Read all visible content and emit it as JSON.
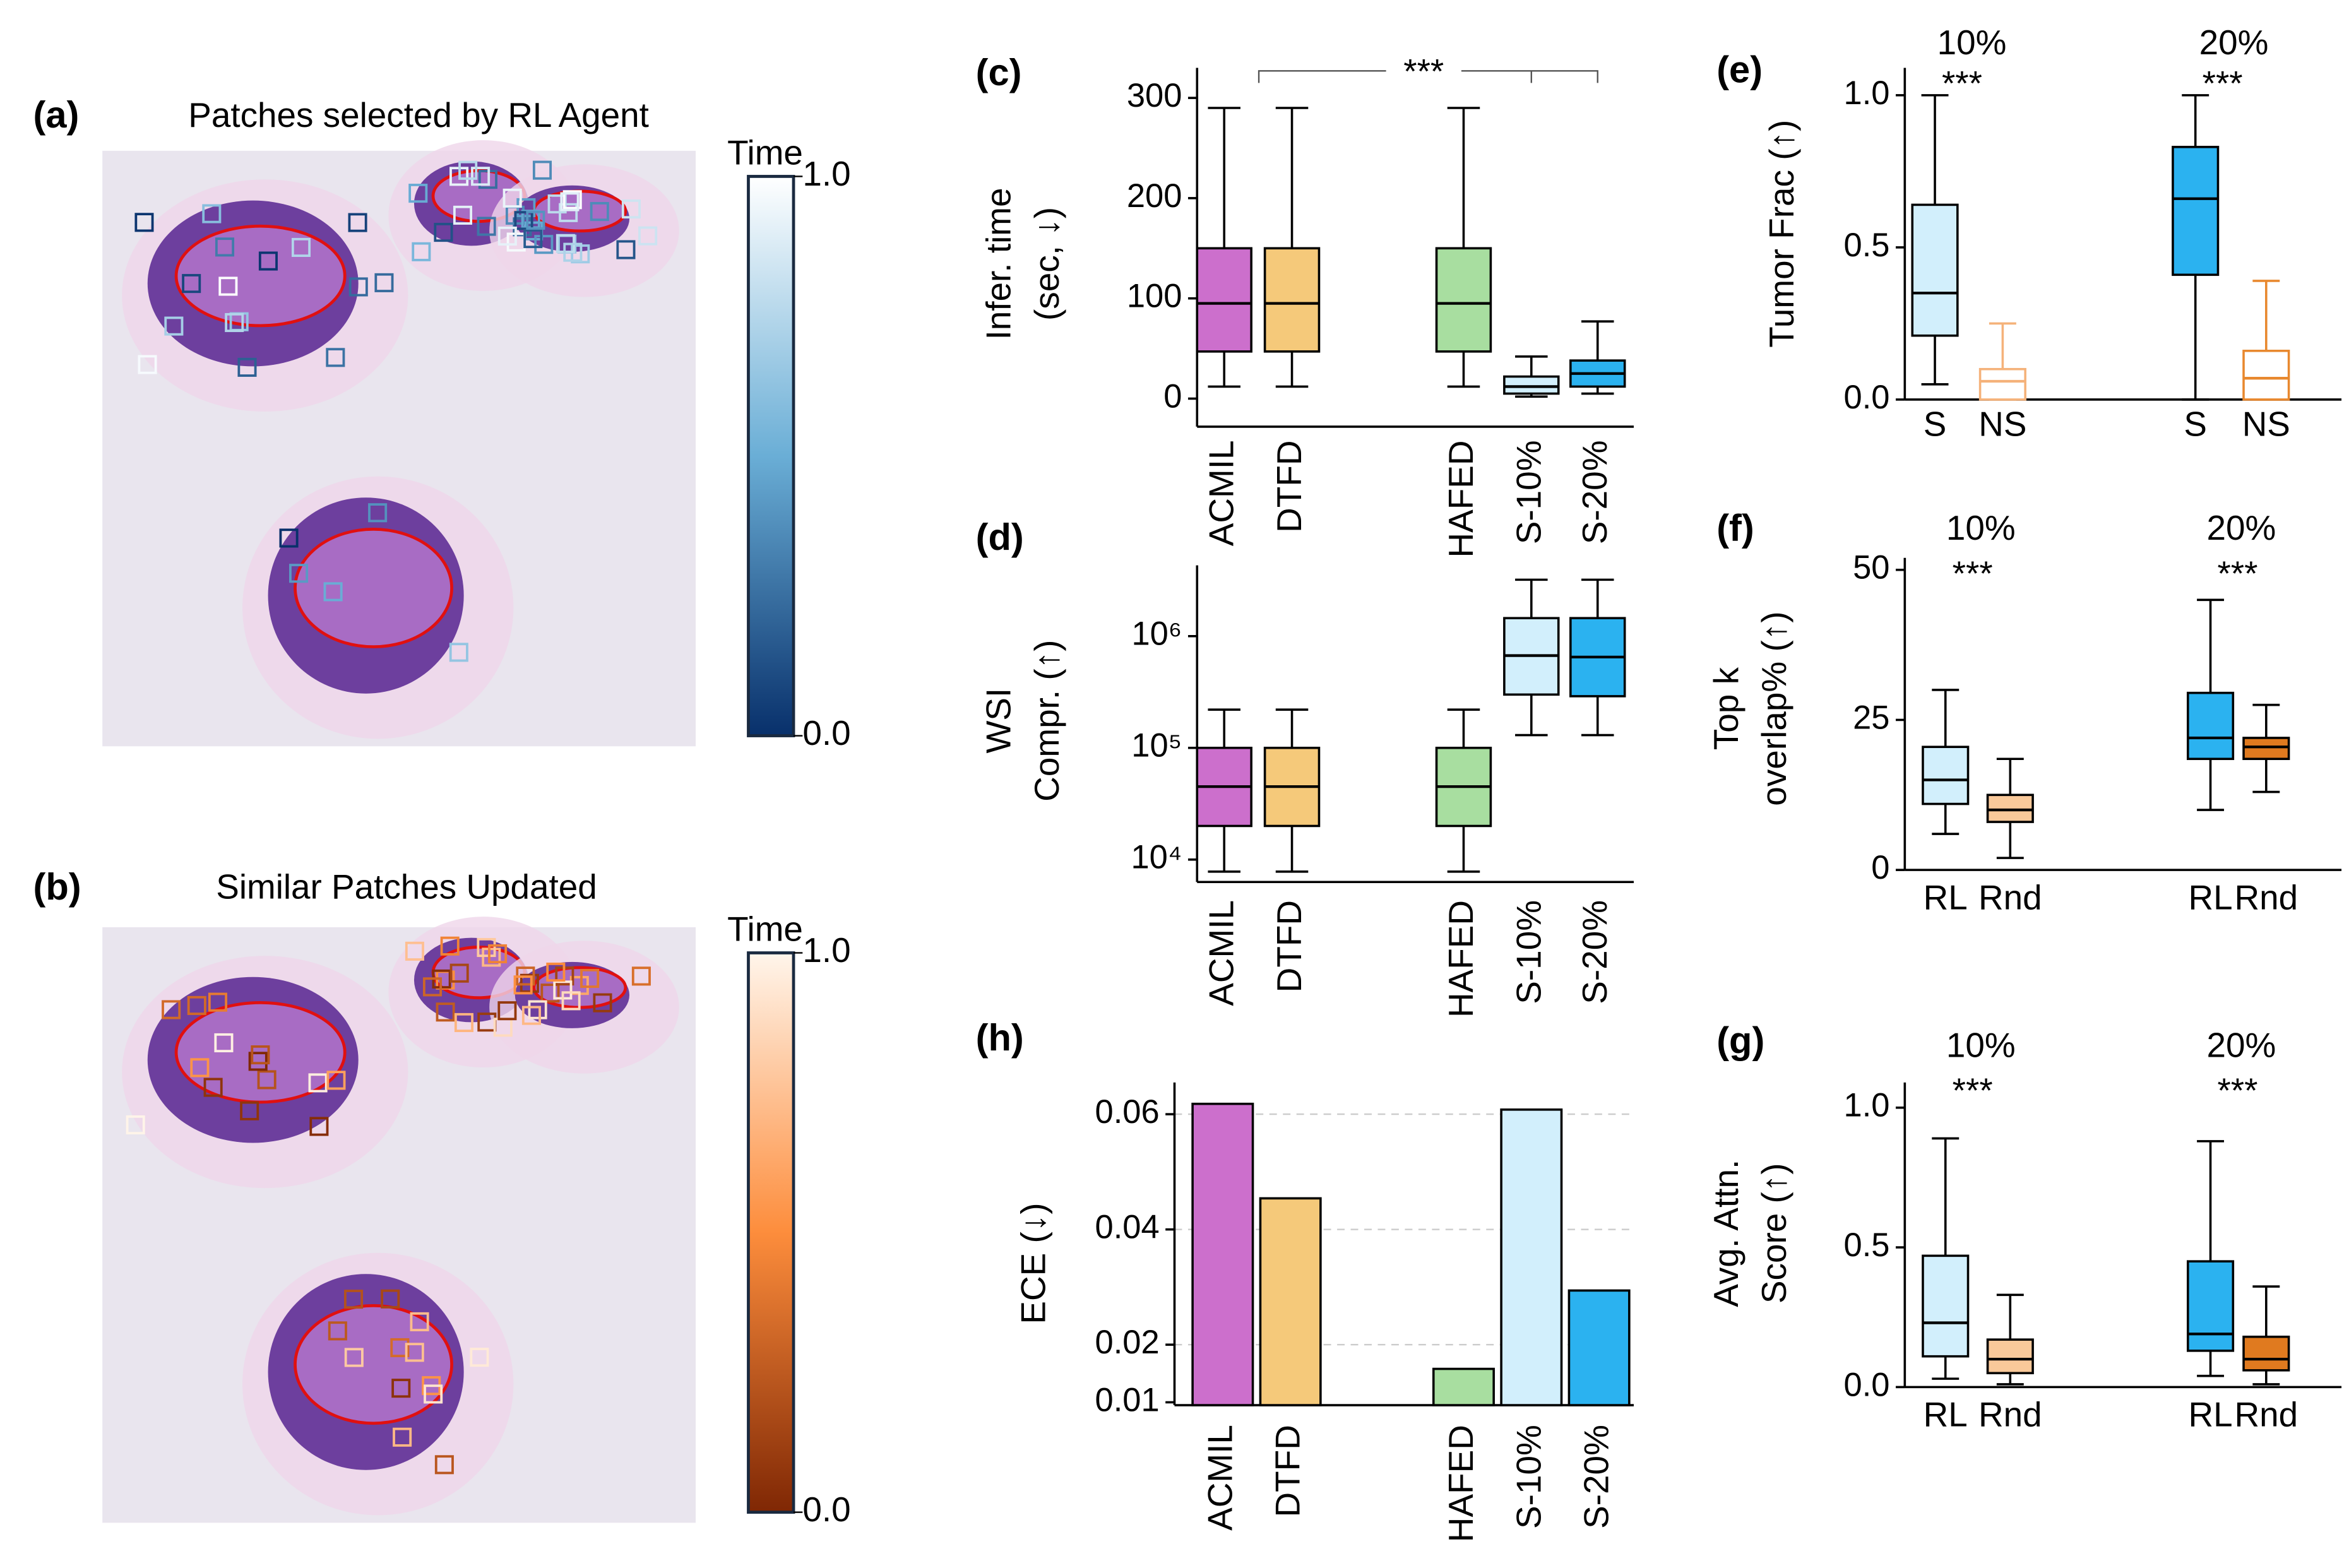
{
  "images": [
    {
      "label": "(a)",
      "title": "Patches selected by RL Agent",
      "colorbar": {
        "title": "Time",
        "ticks": [
          {
            "value": 1,
            "label": "1.0"
          },
          {
            "value": 0,
            "label": "0.0"
          }
        ],
        "colors": [
          "#08306b",
          "#6aaed6",
          "#ffffff"
        ]
      }
    },
    {
      "label": "(b)",
      "title": "Similar Patches Updated",
      "colorbar": {
        "title": "Time",
        "ticks": [
          {
            "value": 1,
            "label": "1.0"
          },
          {
            "value": 0,
            "label": "0.0"
          }
        ],
        "colors": [
          "#7f2704",
          "#fd8d3c",
          "#fff5eb"
        ]
      }
    }
  ],
  "chart_data": [
    {
      "type": "box",
      "label": "(c)",
      "ylabel": [
        "Infer. time",
        "(sec, ↓)"
      ],
      "annotation": "***",
      "categories": [
        "ACMIL",
        "DTFD",
        "HAFED",
        "S-10%",
        "S-20%"
      ],
      "boxes": [
        {
          "min": 12,
          "q1": 47,
          "median": 95,
          "q3": 150,
          "max": 290,
          "color": "#cc6fcc",
          "edge": "#000000"
        },
        {
          "min": 12,
          "q1": 47,
          "median": 95,
          "q3": 150,
          "max": 290,
          "color": "#f5c97a",
          "edge": "#000000"
        },
        {
          "min": 12,
          "q1": 47,
          "median": 95,
          "q3": 150,
          "max": 290,
          "color": "#a8dea0",
          "edge": "#000000"
        },
        {
          "min": 2,
          "q1": 5,
          "median": 12,
          "q3": 22,
          "max": 42,
          "color": "#d2effc",
          "edge": "#000000"
        },
        {
          "min": 5,
          "q1": 12,
          "median": 25,
          "q3": 38,
          "max": 77,
          "color": "#2bb2f0",
          "edge": "#000000"
        }
      ],
      "ylim": [
        -28,
        330
      ],
      "yticks": [
        0,
        100,
        200,
        300
      ],
      "grid": false
    },
    {
      "type": "box",
      "label": "(d)",
      "ylabel": [
        "WSI",
        "Compr. (↑)"
      ],
      "log": true,
      "categories": [
        "ACMIL",
        "DTFD",
        "HAFED",
        "S-10%",
        "S-20%"
      ],
      "boxes": [
        {
          "min": 7800,
          "q1": 20000,
          "median": 45000,
          "q3": 100000,
          "max": 220000,
          "color": "#cc6fcc",
          "edge": "#000000"
        },
        {
          "min": 7800,
          "q1": 20000,
          "median": 45000,
          "q3": 100000,
          "max": 220000,
          "color": "#f5c97a",
          "edge": "#000000"
        },
        {
          "min": 7800,
          "q1": 20000,
          "median": 45000,
          "q3": 100000,
          "max": 220000,
          "color": "#a8dea0",
          "edge": "#000000"
        },
        {
          "min": 130000,
          "q1": 300000,
          "median": 670000,
          "q3": 1450000,
          "max": 3200000,
          "color": "#d2effc",
          "edge": "#000000"
        },
        {
          "min": 130000,
          "q1": 290000,
          "median": 650000,
          "q3": 1450000,
          "max": 3200000,
          "color": "#2bb2f0",
          "edge": "#000000"
        }
      ],
      "ylim": [
        6300,
        4300000
      ],
      "yticks": [
        {
          "value": 10000,
          "label": "10⁴"
        },
        {
          "value": 100000,
          "label": "10⁵"
        },
        {
          "value": 1000000,
          "label": "10⁶"
        }
      ],
      "grid": false
    },
    {
      "type": "bar",
      "label": "(h)",
      "ylabel": [
        "ECE (↓)"
      ],
      "categories": [
        "ACMIL",
        "DTFD",
        "HAFED",
        "S-10%",
        "S-20%"
      ],
      "values": [
        0.0618,
        0.0454,
        0.0158,
        0.0608,
        0.0294
      ],
      "colors": [
        "#cc6fcc",
        "#f5c97a",
        "#a8dea0",
        "#d2effc",
        "#2bb2f0"
      ],
      "ylim": [
        0.0095,
        0.0655
      ],
      "yticks": [
        0.01,
        0.02,
        0.04,
        0.06
      ],
      "grid": true
    },
    {
      "type": "box",
      "label": "(e)",
      "ylabel": [
        "Tumor Frac (↑)"
      ],
      "groups": [
        {
          "label": "10%",
          "note": "***"
        },
        {
          "label": "20%",
          "note": "***"
        }
      ],
      "categories": [
        "S",
        "NS",
        "S",
        "NS"
      ],
      "boxes": [
        {
          "min": 0.05,
          "q1": 0.21,
          "median": 0.35,
          "q3": 0.64,
          "max": 1.0,
          "color": "#d2effc",
          "edge": "#000000"
        },
        {
          "min": 0.0,
          "q1": 0.0,
          "median": 0.06,
          "q3": 0.1,
          "max": 0.25,
          "color": "#ffffff",
          "edge": "#f5b27a"
        },
        {
          "min": 0.0,
          "q1": 0.41,
          "median": 0.66,
          "q3": 0.83,
          "max": 1.0,
          "color": "#2bb2f0",
          "edge": "#000000"
        },
        {
          "min": 0.0,
          "q1": 0.0,
          "median": 0.07,
          "q3": 0.16,
          "max": 0.39,
          "color": "#ffffff",
          "edge": "#e8882e"
        }
      ],
      "ylim": [
        0,
        1.09
      ],
      "yticks": [
        {
          "value": 0,
          "label": "0.0"
        },
        {
          "value": 0.5,
          "label": "0.5"
        },
        {
          "value": 1,
          "label": "1.0"
        }
      ],
      "grid": false
    },
    {
      "type": "box",
      "label": "(f)",
      "ylabel": [
        "Top k",
        "overlap% (↑)"
      ],
      "groups": [
        {
          "label": "10%",
          "note": "***"
        },
        {
          "label": "20%",
          "note": "***"
        }
      ],
      "categories": [
        "RL",
        "Rnd",
        "RL",
        "Rnd"
      ],
      "boxes": [
        {
          "min": 6,
          "q1": 11,
          "median": 15,
          "q3": 20.5,
          "max": 30,
          "color": "#d2effc",
          "edge": "#000000"
        },
        {
          "min": 2,
          "q1": 8,
          "median": 10,
          "q3": 12.5,
          "max": 18.5,
          "color": "#f9c99a",
          "edge": "#000000"
        },
        {
          "min": 10,
          "q1": 18.5,
          "median": 22,
          "q3": 29.5,
          "max": 45,
          "color": "#2bb2f0",
          "edge": "#000000"
        },
        {
          "min": 13,
          "q1": 18.5,
          "median": 20.5,
          "q3": 22,
          "max": 27.5,
          "color": "#e07a1f",
          "edge": "#000000"
        }
      ],
      "ylim": [
        0,
        52
      ],
      "yticks": [
        0,
        25,
        50
      ],
      "grid": false
    },
    {
      "type": "box",
      "label": "(g)",
      "ylabel": [
        "Avg. Attn.",
        "Score (↑)"
      ],
      "groups": [
        {
          "label": "10%",
          "note": "***"
        },
        {
          "label": "20%",
          "note": "***"
        }
      ],
      "categories": [
        "RL",
        "Rnd",
        "RL",
        "Rnd"
      ],
      "boxes": [
        {
          "min": 0.03,
          "q1": 0.11,
          "median": 0.23,
          "q3": 0.47,
          "max": 0.89,
          "color": "#d2effc",
          "edge": "#000000"
        },
        {
          "min": 0.01,
          "q1": 0.05,
          "median": 0.1,
          "q3": 0.17,
          "max": 0.33,
          "color": "#f9c99a",
          "edge": "#000000"
        },
        {
          "min": 0.04,
          "q1": 0.13,
          "median": 0.19,
          "q3": 0.45,
          "max": 0.88,
          "color": "#2bb2f0",
          "edge": "#000000"
        },
        {
          "min": 0.01,
          "q1": 0.06,
          "median": 0.1,
          "q3": 0.18,
          "max": 0.36,
          "color": "#e07a1f",
          "edge": "#000000"
        }
      ],
      "ylim": [
        0,
        1.09
      ],
      "yticks": [
        {
          "value": 0,
          "label": "0.0"
        },
        {
          "value": 0.5,
          "label": "0.5"
        },
        {
          "value": 1,
          "label": "1.0"
        }
      ],
      "grid": false
    }
  ]
}
